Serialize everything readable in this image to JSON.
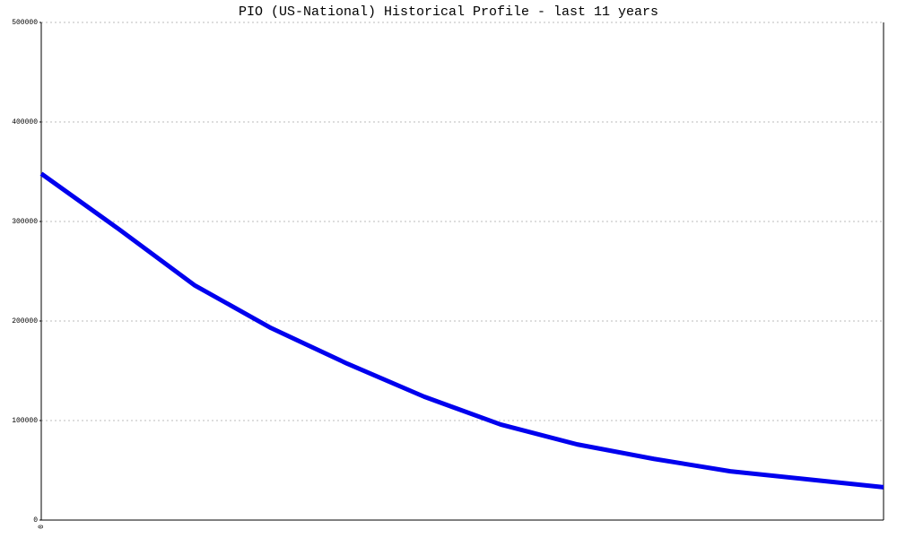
{
  "chart_data": {
    "type": "line",
    "title": "PIO (US-National) Historical Profile - last 11 years",
    "categories": [
      "0",
      null,
      null,
      null,
      null,
      null,
      null,
      null,
      null,
      null,
      null,
      null
    ],
    "series": [
      {
        "color": "#0000ee",
        "values": [
          348000,
          293000,
          236000,
          193000,
          157000,
          124000,
          96000,
          76000,
          61500,
          49000,
          41000,
          33000
        ]
      }
    ],
    "ylim": [
      0,
      500000
    ],
    "yticks": [
      0,
      100000,
      200000,
      300000,
      400000,
      500000
    ],
    "grid": true
  }
}
